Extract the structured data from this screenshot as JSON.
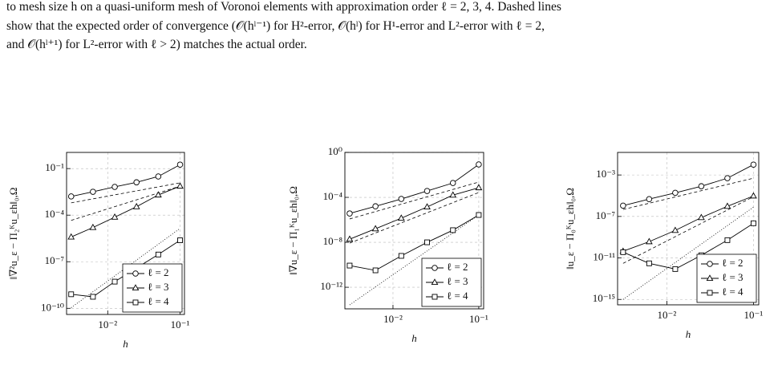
{
  "caption": {
    "lines": [
      "to mesh size h on a quasi-uniform mesh of Voronoi elements with approximation order ℓ = 2, 3, 4. Dashed lines",
      "show that the expected order of convergence (𝒪(hˡ⁻¹) for H²-error, 𝒪(hˡ) for H¹-error and L²-error with ℓ = 2,",
      "and 𝒪(hˡ⁺¹) for L²-error with ℓ > 2) matches the actual order."
    ]
  },
  "chart_data": [
    {
      "type": "line",
      "xlabel": "h",
      "ylabel": "‖∇²u_ε − Π₂ᴷu_εh‖₀,Ω",
      "xscale": "log",
      "yscale": "log",
      "grid": true,
      "legend": "lower right",
      "xlim": [
        0.0027,
        0.115
      ],
      "xticks": [
        {
          "value": 0.01,
          "label": "10⁻²"
        },
        {
          "value": 0.1,
          "label": "10⁻¹"
        }
      ],
      "ylim": [
        4e-11,
        1.1
      ],
      "yticks": [
        {
          "value": 0.1,
          "label": "10⁻¹"
        },
        {
          "value": 0.0001,
          "label": "10⁻⁴"
        },
        {
          "value": 1e-07,
          "label": "10⁻⁷"
        },
        {
          "value": 1e-10,
          "label": "10⁻¹⁰"
        }
      ],
      "x": [
        0.003125,
        0.00625,
        0.0125,
        0.025,
        0.05,
        0.1
      ],
      "series": [
        {
          "name": "ℓ = 2",
          "marker": "circle",
          "color": "#000000",
          "values": [
            0.0016,
            0.0032,
            0.0066,
            0.013,
            0.031,
            0.18
          ]
        },
        {
          "name": "ℓ = 3",
          "marker": "triangle",
          "color": "#000000",
          "values": [
            3.9e-06,
            1.6e-05,
            7.4e-05,
            0.00035,
            0.002,
            0.0074
          ]
        },
        {
          "name": "ℓ = 4",
          "marker": "square",
          "color": "#000000",
          "values": [
            8e-10,
            5.5e-10,
            5.2e-09,
            3.9e-08,
            2.9e-07,
            2.4e-06
          ]
        }
      ],
      "reference_lines": [
        {
          "style": "dashed",
          "x": [
            0.003125,
            0.1
          ],
          "values": [
            0.00062,
            0.012
          ]
        },
        {
          "style": "dashed",
          "x": [
            0.003125,
            0.1
          ],
          "values": [
            4.6e-05,
            0.0074
          ]
        },
        {
          "style": "dotted",
          "x": [
            0.003125,
            0.1
          ],
          "values": [
            1.1e-10,
            1.4e-05
          ]
        }
      ]
    },
    {
      "type": "line",
      "xlabel": "h",
      "ylabel": "‖∇u_ε − Π₁ᴷu_εh‖₀,Ω",
      "xscale": "log",
      "yscale": "log",
      "grid": true,
      "legend": "lower right",
      "xlim": [
        0.00275,
        0.114
      ],
      "xticks": [
        {
          "value": 0.01,
          "label": "10⁻²"
        },
        {
          "value": 0.1,
          "label": "10⁻¹"
        }
      ],
      "ylim": [
        1.2e-14,
        1
      ],
      "yticks": [
        {
          "value": 1,
          "label": "10⁰"
        },
        {
          "value": 0.0001,
          "label": "10⁻⁴"
        },
        {
          "value": 1e-08,
          "label": "10⁻⁸"
        },
        {
          "value": 1e-12,
          "label": "10⁻¹²"
        }
      ],
      "x": [
        0.003125,
        0.00625,
        0.0125,
        0.025,
        0.05,
        0.1
      ],
      "series": [
        {
          "name": "ℓ = 2",
          "marker": "circle",
          "color": "#000000",
          "values": [
            3.7e-06,
            1.6e-05,
            7.2e-05,
            0.00037,
            0.0019,
            0.085
          ]
        },
        {
          "name": "ℓ = 3",
          "marker": "triangle",
          "color": "#000000",
          "values": [
            1.9e-08,
            1.6e-07,
            1.4e-06,
            1.4e-05,
            0.00016,
            0.00072
          ]
        },
        {
          "name": "ℓ = 4",
          "marker": "square",
          "color": "#000000",
          "values": [
            8.5e-11,
            3.2e-11,
            6.2e-10,
            1e-08,
            1.2e-07,
            2.7e-06
          ]
        }
      ],
      "reference_lines": [
        {
          "style": "dashed",
          "x": [
            0.003125,
            0.1
          ],
          "values": [
            1.2e-06,
            0.0023
          ]
        },
        {
          "style": "dashed",
          "x": [
            0.003125,
            0.1
          ],
          "values": [
            8.5e-09,
            0.00027
          ]
        },
        {
          "style": "dotted",
          "x": [
            0.003125,
            0.1
          ],
          "values": [
            2.7e-14,
            2.7e-06
          ]
        }
      ]
    },
    {
      "type": "line",
      "xlabel": "h",
      "ylabel": "‖u_ε − Π₀ᴷu_εh‖₀,Ω",
      "xscale": "log",
      "yscale": "log",
      "grid": true,
      "legend": "lower right",
      "xlim": [
        0.0027,
        0.115
      ],
      "xticks": [
        {
          "value": 0.01,
          "label": "10⁻²"
        },
        {
          "value": 0.1,
          "label": "10⁻¹"
        }
      ],
      "ylim": [
        3e-16,
        0.15
      ],
      "yticks": [
        {
          "value": 0.001,
          "label": "10⁻³"
        },
        {
          "value": 1e-07,
          "label": "10⁻⁷"
        },
        {
          "value": 1e-11,
          "label": "10⁻¹¹"
        },
        {
          "value": 1e-15,
          "label": "10⁻¹⁵"
        }
      ],
      "x": [
        0.003125,
        0.00625,
        0.0125,
        0.025,
        0.05,
        0.1
      ],
      "series": [
        {
          "name": "ℓ = 2",
          "marker": "circle",
          "color": "#000000",
          "values": [
            1.1e-06,
            4.7e-06,
            1.9e-05,
            8.2e-05,
            0.00049,
            0.01
          ]
        },
        {
          "name": "ℓ = 3",
          "marker": "triangle",
          "color": "#000000",
          "values": [
            4.4e-11,
            3.7e-10,
            4.5e-09,
            7.8e-08,
            9.5e-07,
            9.5e-06
          ]
        },
        {
          "name": "ℓ = 4",
          "marker": "square",
          "color": "#000000",
          "values": [
            3.6e-11,
            3e-12,
            8.5e-13,
            1.8e-11,
            5.2e-10,
            2.2e-08
          ]
        }
      ],
      "reference_lines": [
        {
          "style": "dashed",
          "x": [
            0.003125,
            0.1
          ],
          "values": [
            4.7e-07,
            0.00049
          ]
        },
        {
          "style": "dashed",
          "x": [
            0.003125,
            0.1
          ],
          "values": [
            3e-12,
            8.1e-06
          ]
        },
        {
          "style": "dotted",
          "x": [
            0.003125,
            0.1
          ],
          "values": [
            1e-15,
            7.9e-07
          ]
        }
      ]
    }
  ]
}
